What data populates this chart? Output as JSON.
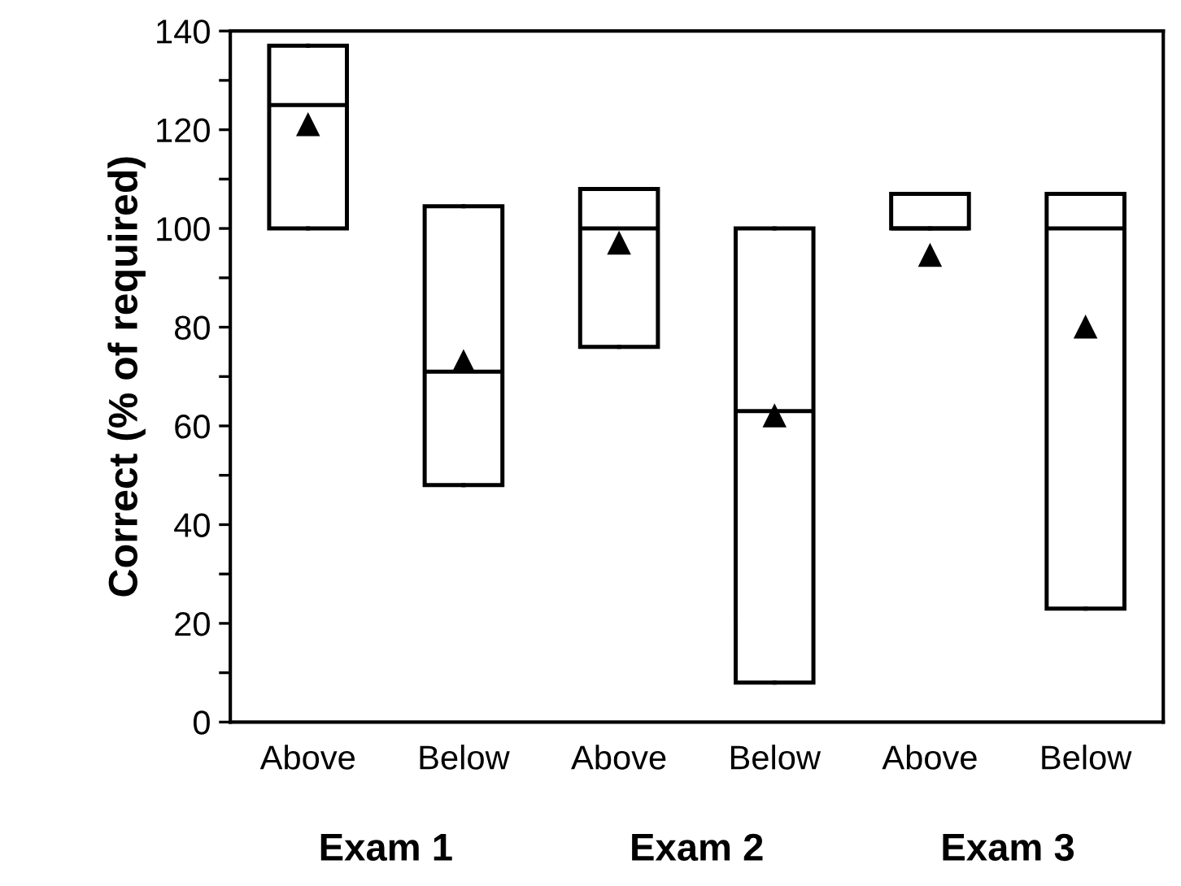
{
  "chart_data": {
    "type": "box",
    "ylabel": "Correct (% of required)",
    "categories": [
      "Above",
      "Below",
      "Above",
      "Below",
      "Above",
      "Below"
    ],
    "boxes": [
      {
        "low": 100,
        "q1": 100,
        "median": 125,
        "q3": 137,
        "high": 137,
        "mean": 121
      },
      {
        "low": 48,
        "q1": 48,
        "median": 71,
        "q3": 104.5,
        "high": 104.5,
        "mean": 73
      },
      {
        "low": 76,
        "q1": 76,
        "median": 100,
        "q3": 108,
        "high": 108,
        "mean": 97
      },
      {
        "low": 8,
        "q1": 8,
        "median": 63,
        "q3": 100,
        "high": 100,
        "mean": 62
      },
      {
        "low": 100,
        "q1": 100,
        "median": 100,
        "q3": 107,
        "high": 107,
        "mean": 94.5
      },
      {
        "low": 23,
        "q1": 23,
        "median": 100,
        "q3": 107,
        "high": 107,
        "mean": 80
      }
    ],
    "annotations": [
      "Exam 1",
      "Exam 2",
      "Exam 3"
    ],
    "ylim": [
      0,
      140
    ],
    "yticks": [
      0,
      {
        "value": 10,
        "label": null
      },
      20,
      {
        "value": 30,
        "label": null
      },
      40,
      {
        "value": 50,
        "label": null
      },
      60,
      {
        "value": 70,
        "label": null
      },
      80,
      {
        "value": 90,
        "label": null
      },
      100,
      {
        "value": 110,
        "label": null
      },
      120,
      {
        "value": 130,
        "label": null
      },
      140
    ],
    "marker": "triangle",
    "grid": false,
    "legend": false
  }
}
